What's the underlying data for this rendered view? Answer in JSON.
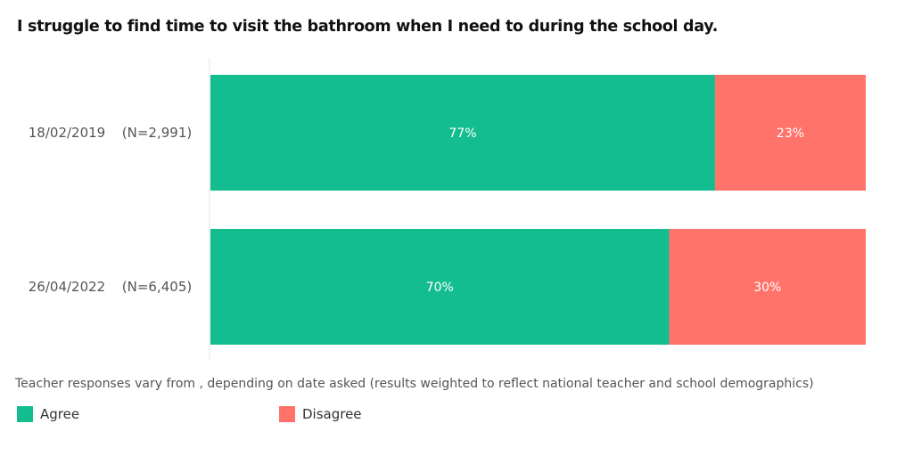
{
  "chart_data": {
    "type": "bar",
    "orientation": "horizontal",
    "stacked": true,
    "title": "I struggle to find time to visit the bathroom when I need to during the school day.",
    "categories": [
      "18/02/2019",
      "26/04/2022"
    ],
    "sample_sizes": [
      "(N=2,991)",
      "(N=6,405)"
    ],
    "series": [
      {
        "name": "Agree",
        "color": "#14bd8f",
        "values": [
          77,
          70
        ],
        "labels": [
          "77%",
          "70%"
        ]
      },
      {
        "name": "Disagree",
        "color": "#ff736b",
        "values": [
          23,
          30
        ],
        "labels": [
          "23%",
          "30%"
        ]
      }
    ],
    "xlim": [
      0,
      100
    ],
    "note": "Teacher responses vary from , depending on date asked (results weighted to reflect national teacher and school demographics)",
    "legend_position": "bottom-left"
  }
}
